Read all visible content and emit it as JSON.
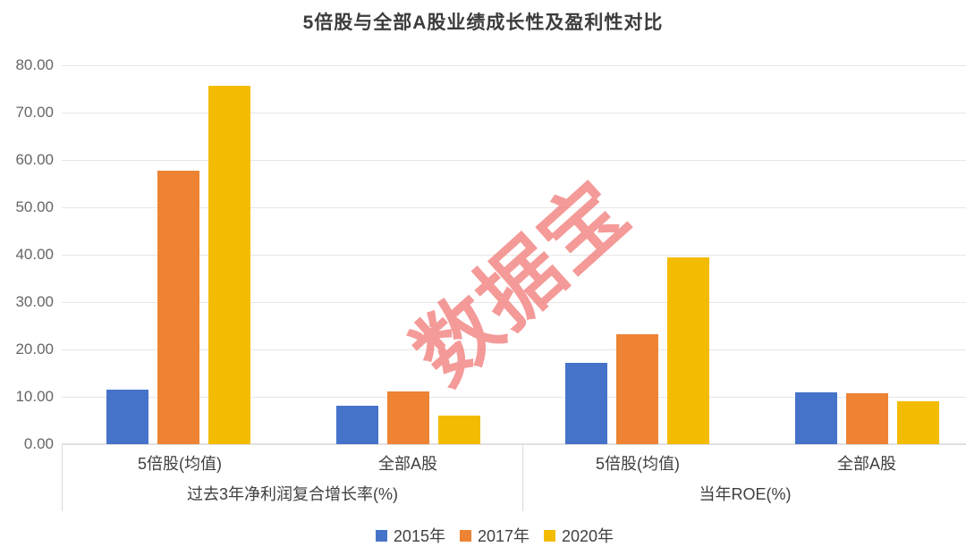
{
  "page": {
    "title": "5倍股与全部A股业绩成长性及盈利性对比"
  },
  "watermark": {
    "text": "数据宝",
    "color": "#f2827f"
  },
  "chart_data": {
    "type": "bar",
    "title": "5倍股与全部A股业绩成长性及盈利性对比",
    "y_axis": {
      "min": 0,
      "max": 80,
      "step": 10,
      "tick_labels_top_to_bottom": [
        "80.00",
        "70.00",
        "60.00",
        "50.00",
        "40.00",
        "30.00",
        "20.00",
        "10.00",
        "0.00"
      ],
      "grid": true
    },
    "groups": [
      {
        "label": "过去3年净利润复合增长率(%)",
        "categories": [
          "5倍股(均值)",
          "全部A股"
        ]
      },
      {
        "label": "当年ROE(%)",
        "categories": [
          "5倍股(均值)",
          "全部A股"
        ]
      }
    ],
    "cluster_order": [
      "过去3年净利润复合增长率(%) / 5倍股(均值)",
      "过去3年净利润复合增长率(%) / 全部A股",
      "当年ROE(%) / 5倍股(均值)",
      "当年ROE(%) / 全部A股"
    ],
    "series": [
      {
        "name": "2015年",
        "color": "#4573c9",
        "values": [
          11.5,
          8.1,
          17.1,
          10.9
        ]
      },
      {
        "name": "2017年",
        "color": "#ee8333",
        "values": [
          57.7,
          11.2,
          23.3,
          10.8
        ]
      },
      {
        "name": "2020年",
        "color": "#f3bc02",
        "values": [
          75.7,
          6.1,
          39.4,
          9.0
        ]
      }
    ],
    "legend_position": "bottom",
    "grid_color": "#e6e6e6",
    "axis_box_color": "#d9d9d9"
  }
}
